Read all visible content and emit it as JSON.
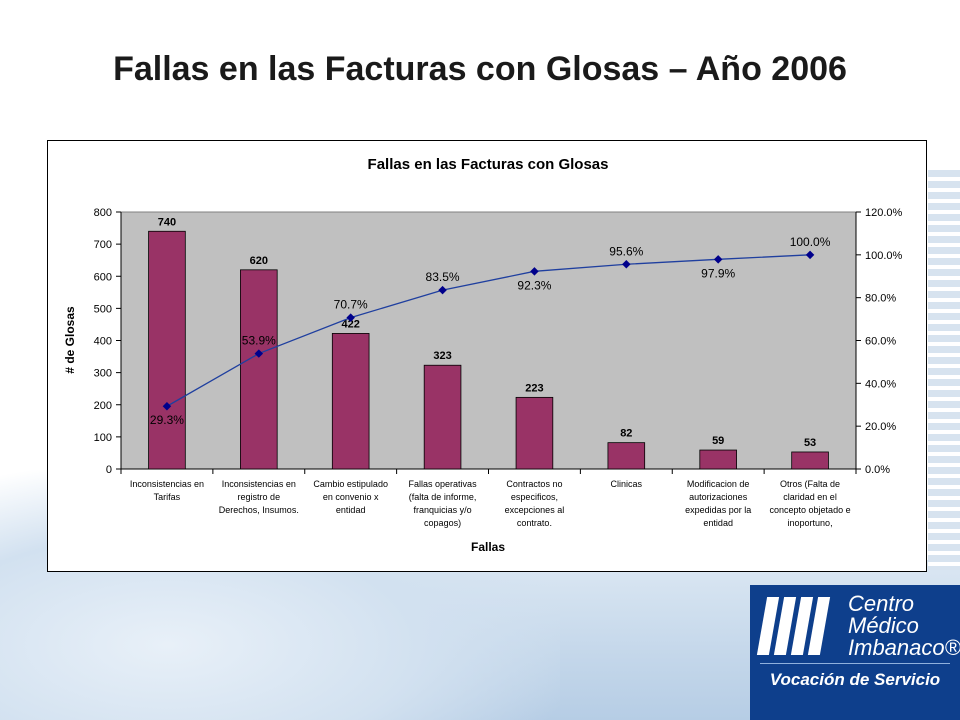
{
  "slide": {
    "title": "Fallas en las Facturas con Glosas – Año 2006"
  },
  "logo": {
    "line1": "Centro",
    "line2": "Médico",
    "line3": "Imbanaco®",
    "tagline": "Vocación de Servicio"
  },
  "chart_data": {
    "type": "bar",
    "title": "Fallas en las Facturas con Glosas",
    "xlabel": "Fallas",
    "ylabel": "# de Glosas",
    "ylim": [
      0,
      800
    ],
    "y_ticks": [
      "0",
      "100",
      "200",
      "300",
      "400",
      "500",
      "600",
      "700",
      "800"
    ],
    "y2lim": [
      0,
      120
    ],
    "y2_ticks": [
      "0.0%",
      "20.0%",
      "40.0%",
      "60.0%",
      "80.0%",
      "100.0%",
      "120.0%"
    ],
    "grid": false,
    "plot_bg": "#c0c0c0",
    "categories": [
      [
        "Inconsistencias en",
        "Tarifas"
      ],
      [
        "Inconsistencias en",
        "registro de",
        "Derechos, Insumos."
      ],
      [
        "Cambio estipulado",
        "en convenio x",
        "entidad"
      ],
      [
        "Fallas operativas",
        "(falta de informe,",
        "franquicias y/o",
        "copagos)"
      ],
      [
        "Contractos no",
        "especificos,",
        "excepciones al",
        "contrato."
      ],
      [
        "Clinicas"
      ],
      [
        "Modificacion de",
        "autorizaciones",
        "expedidas por la",
        "entidad"
      ],
      [
        "Otros (Falta de",
        "claridad en el",
        "concepto objetado e",
        "inoportuno,"
      ]
    ],
    "series": [
      {
        "type": "bar",
        "values": [
          740,
          620,
          422,
          323,
          223,
          82,
          59,
          53
        ],
        "labels": [
          "740",
          "620",
          "422",
          "323",
          "223",
          "82",
          "59",
          "53"
        ],
        "color": "#993366"
      },
      {
        "type": "line",
        "axis": "secondary",
        "values": [
          29.3,
          53.9,
          70.7,
          83.5,
          92.3,
          95.6,
          97.9,
          100.0
        ],
        "labels": [
          "29.3%",
          "53.9%",
          "70.7%",
          "83.5%",
          "92.3%",
          "95.6%",
          "97.9%",
          "100.0%"
        ],
        "color": "#1f3f9f"
      }
    ]
  }
}
